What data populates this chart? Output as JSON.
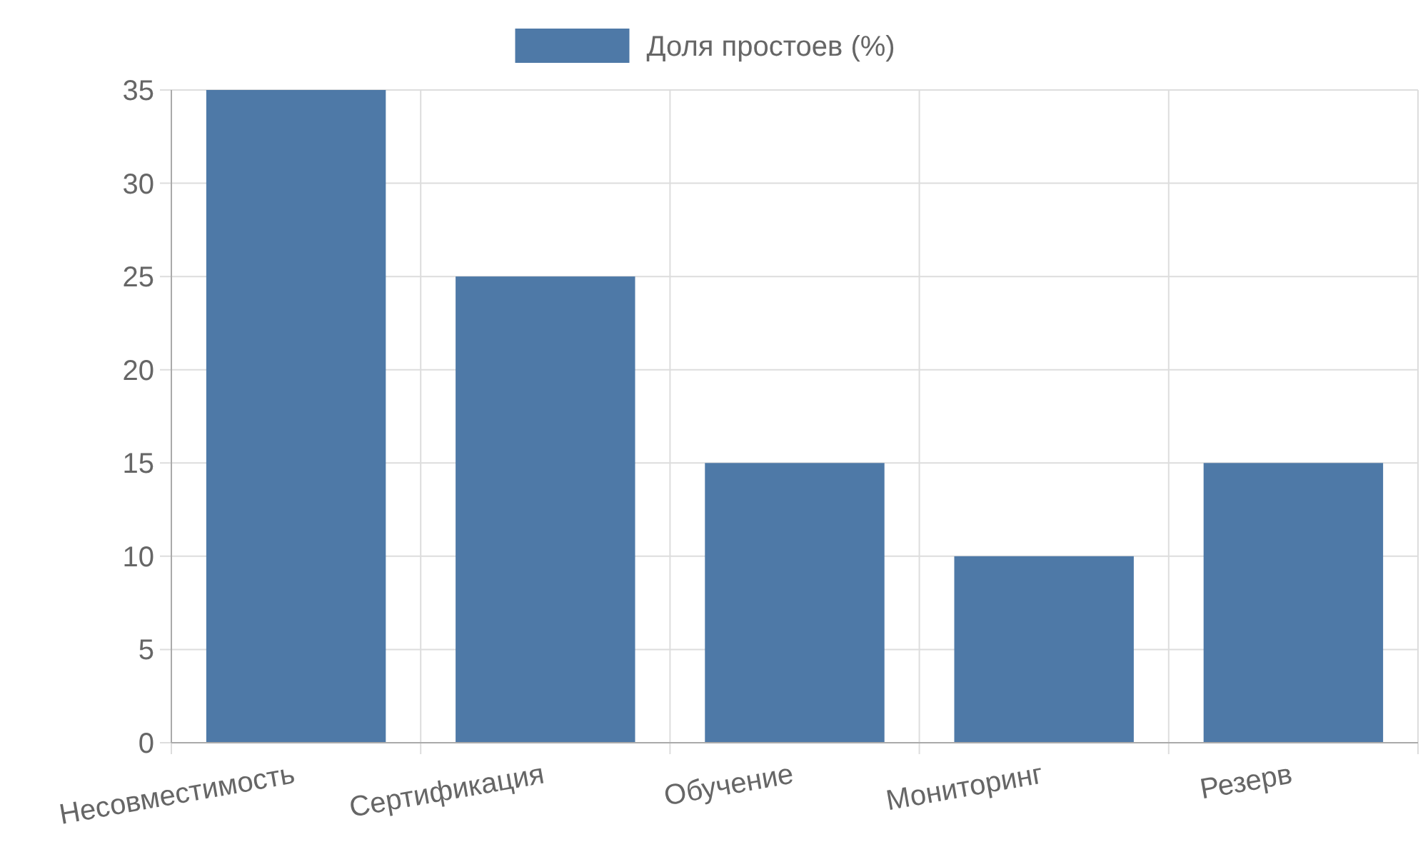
{
  "chart_data": {
    "type": "bar",
    "categories": [
      "Несовместимость",
      "Сертификация",
      "Обучение",
      "Мониторинг",
      "Резерв"
    ],
    "series": [
      {
        "name": "Доля простоев (%)",
        "color": "#4e79a7",
        "values": [
          35,
          25,
          15,
          10,
          15
        ]
      }
    ],
    "ylim": [
      0,
      35
    ],
    "yticks": [
      0,
      5,
      10,
      15,
      20,
      25,
      30,
      35
    ],
    "grid": true,
    "legend": "top"
  }
}
